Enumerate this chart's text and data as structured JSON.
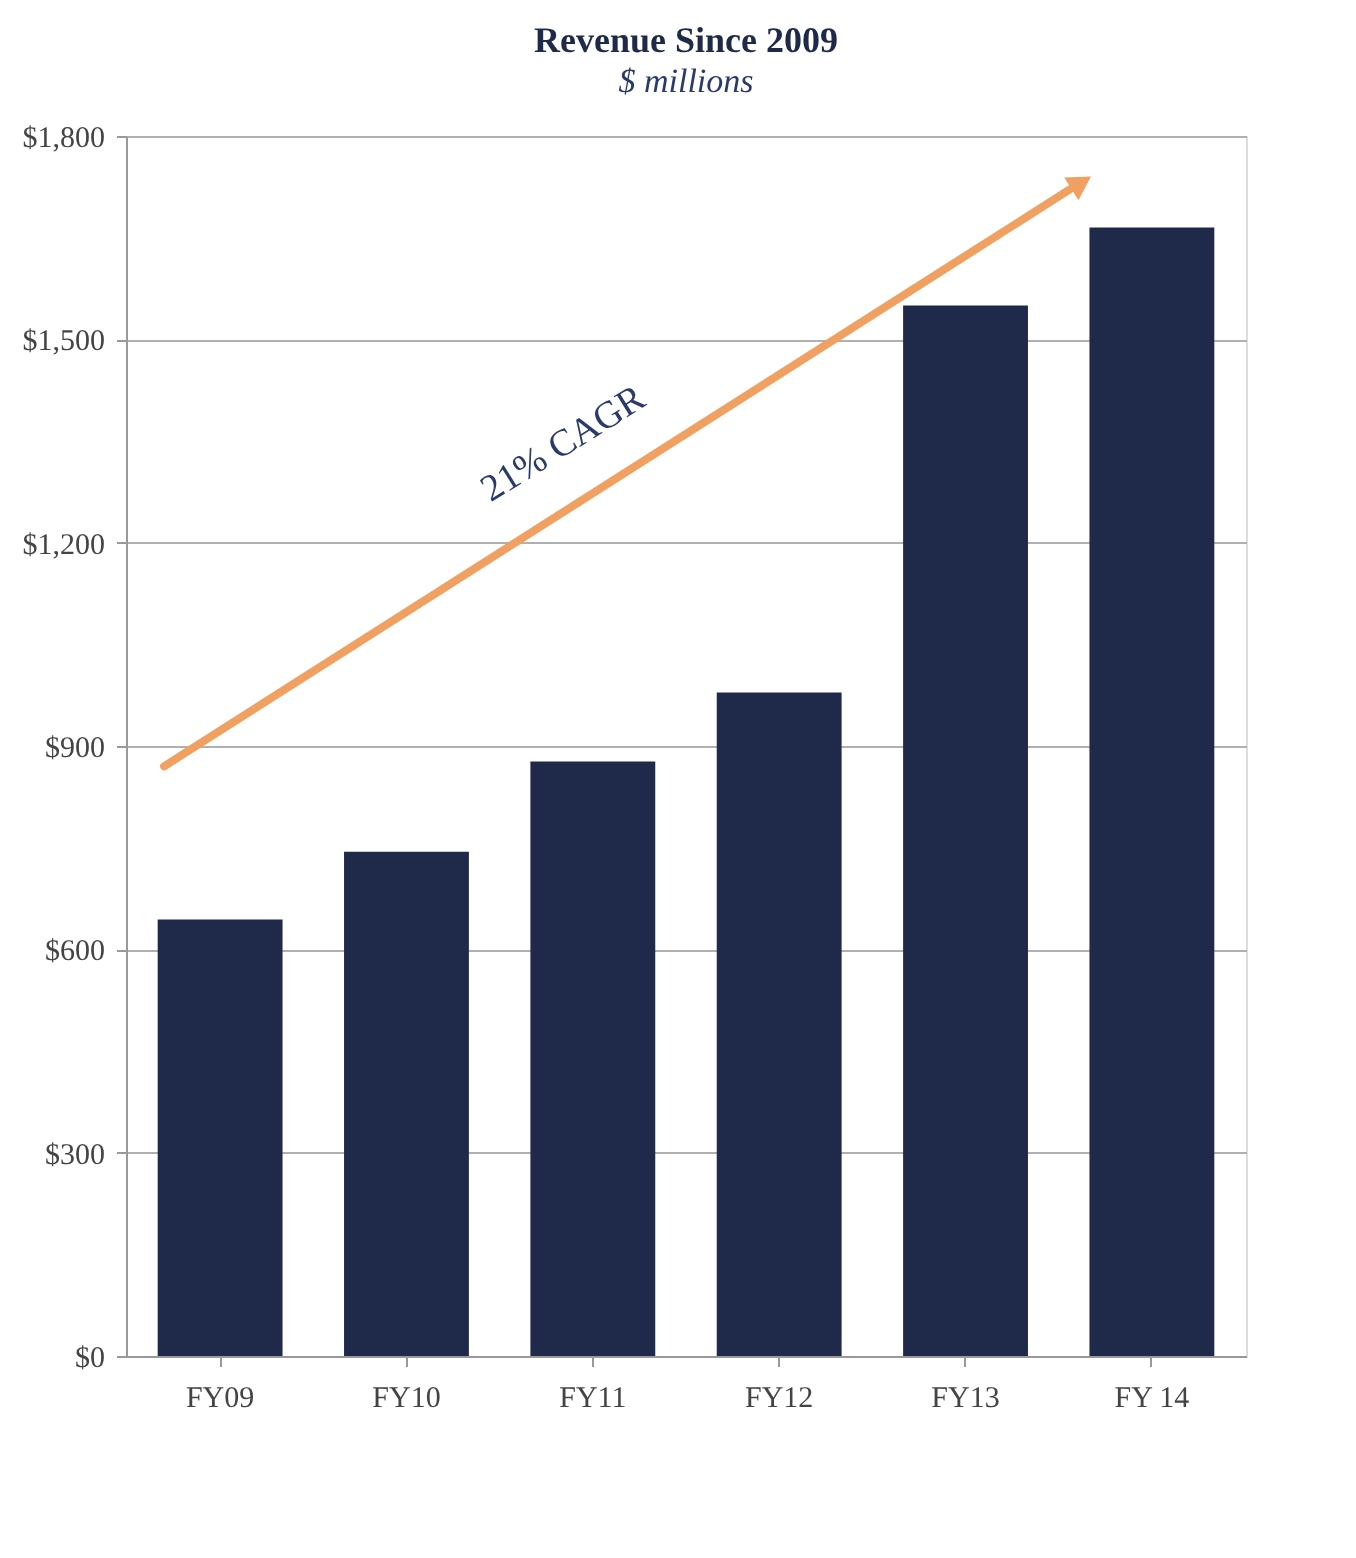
{
  "chart_data": {
    "type": "bar",
    "title": "Revenue Since 2009",
    "subtitle": "$ millions",
    "categories": [
      "FY09",
      "FY10",
      "FY11",
      "FY12",
      "FY13",
      "FY 14"
    ],
    "values": [
      644,
      744,
      877,
      979,
      1550,
      1665
    ],
    "color": "#1f2a4a",
    "ylim": [
      0,
      1800
    ],
    "yticks": [
      {
        "value": 0,
        "label": "$0"
      },
      {
        "value": 300,
        "label": "$300"
      },
      {
        "value": 600,
        "label": "$600"
      },
      {
        "value": 900,
        "label": "$900"
      },
      {
        "value": 1200,
        "label": "$1,200"
      },
      {
        "value": 1500,
        "label": "$1,500"
      },
      {
        "value": 1800,
        "label": "$1,800"
      }
    ],
    "grid": "y",
    "annotations": [
      "21% CAGR"
    ]
  }
}
